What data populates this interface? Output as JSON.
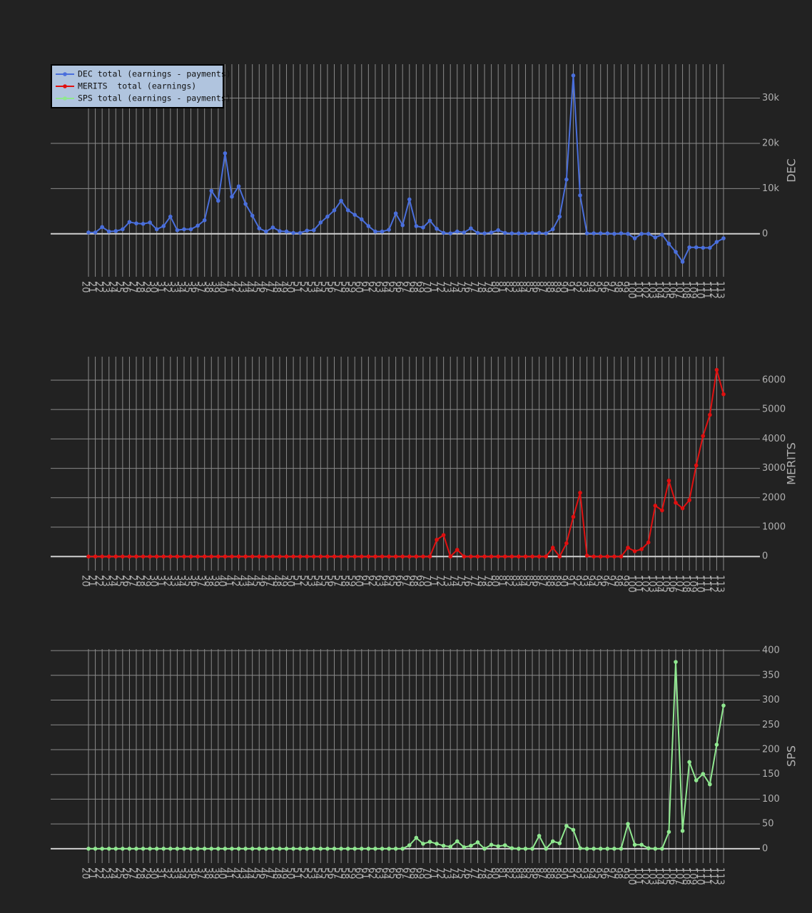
{
  "chart_data": [
    {
      "type": "line",
      "ylabel": "DEC",
      "legend": "upper left",
      "categories": [
        20,
        21,
        22,
        23,
        24,
        25,
        26,
        27,
        28,
        29,
        30,
        31,
        32,
        33,
        34,
        35,
        36,
        37,
        38,
        39,
        40,
        41,
        42,
        43,
        44,
        45,
        46,
        47,
        48,
        49,
        50,
        51,
        52,
        53,
        54,
        55,
        56,
        57,
        58,
        59,
        60,
        61,
        62,
        63,
        64,
        65,
        66,
        67,
        68,
        69,
        70,
        71,
        72,
        73,
        74,
        75,
        76,
        77,
        78,
        79,
        80,
        81,
        82,
        83,
        84,
        85,
        86,
        87,
        88,
        89,
        90,
        91,
        92,
        93,
        94,
        95,
        96,
        97,
        98,
        99,
        100,
        101,
        102,
        103,
        104,
        105,
        106,
        107,
        108,
        109,
        110,
        111,
        112,
        113
      ],
      "series": [
        {
          "name": "DEC total (earnings - payments)",
          "color": "#4a6fdc",
          "values": [
            300,
            300,
            1500,
            500,
            600,
            1000,
            2600,
            2300,
            2200,
            2500,
            1000,
            1700,
            3800,
            800,
            1000,
            1000,
            1800,
            3000,
            9500,
            7300,
            17800,
            8200,
            10500,
            6600,
            4000,
            1200,
            500,
            1400,
            600,
            500,
            200,
            200,
            700,
            800,
            2500,
            3800,
            5200,
            7300,
            5200,
            4200,
            3200,
            1700,
            500,
            500,
            900,
            4500,
            1900,
            7600,
            1700,
            1400,
            2900,
            1100,
            200,
            100,
            500,
            300,
            1200,
            200,
            100,
            300,
            800,
            200,
            100,
            100,
            100,
            200,
            200,
            100,
            1000,
            3800,
            12000,
            35000,
            8500,
            100,
            100,
            100,
            100,
            0,
            100,
            0,
            -1000,
            0,
            0,
            -800,
            -200,
            -2200,
            -4000,
            -6200,
            -3000,
            -3000,
            -3100,
            -3100,
            -1800,
            -1000
          ]
        }
      ],
      "ylim": [
        -9500,
        37500
      ],
      "yticks": [
        0,
        {
          "value": 10000,
          "label": "10k"
        },
        {
          "value": 20000,
          "label": "20k"
        },
        {
          "value": 30000,
          "label": "30k"
        }
      ],
      "grid": true
    },
    {
      "type": "line",
      "ylabel": "MERITS",
      "categories": [
        20,
        21,
        22,
        23,
        24,
        25,
        26,
        27,
        28,
        29,
        30,
        31,
        32,
        33,
        34,
        35,
        36,
        37,
        38,
        39,
        40,
        41,
        42,
        43,
        44,
        45,
        46,
        47,
        48,
        49,
        50,
        51,
        52,
        53,
        54,
        55,
        56,
        57,
        58,
        59,
        60,
        61,
        62,
        63,
        64,
        65,
        66,
        67,
        68,
        69,
        70,
        71,
        72,
        73,
        74,
        75,
        76,
        77,
        78,
        79,
        80,
        81,
        82,
        83,
        84,
        85,
        86,
        87,
        88,
        89,
        90,
        91,
        92,
        93,
        94,
        95,
        96,
        97,
        98,
        99,
        100,
        101,
        102,
        103,
        104,
        105,
        106,
        107,
        108,
        109,
        110,
        111,
        112,
        113
      ],
      "series": [
        {
          "name": "MERITS  total (earnings)",
          "color": "#e01010",
          "values": [
            0,
            0,
            0,
            0,
            0,
            0,
            0,
            0,
            0,
            0,
            0,
            0,
            0,
            0,
            0,
            0,
            0,
            0,
            0,
            0,
            0,
            0,
            0,
            0,
            0,
            0,
            0,
            0,
            0,
            0,
            0,
            0,
            0,
            0,
            0,
            0,
            0,
            0,
            0,
            0,
            0,
            0,
            0,
            0,
            0,
            0,
            0,
            0,
            0,
            0,
            0,
            570,
            730,
            0,
            230,
            0,
            0,
            0,
            0,
            0,
            0,
            0,
            0,
            0,
            0,
            0,
            0,
            0,
            300,
            0,
            450,
            1350,
            2170,
            30,
            0,
            0,
            0,
            0,
            0,
            300,
            180,
            250,
            480,
            1730,
            1570,
            2580,
            1830,
            1640,
            1920,
            3100,
            4100,
            4820,
            6350,
            5520
          ]
        }
      ],
      "ylim": [
        -480,
        6800
      ],
      "yticks": [
        0,
        1000,
        2000,
        3000,
        4000,
        5000,
        6000
      ],
      "grid": true
    },
    {
      "type": "line",
      "ylabel": "SPS",
      "categories": [
        20,
        21,
        22,
        23,
        24,
        25,
        26,
        27,
        28,
        29,
        30,
        31,
        32,
        33,
        34,
        35,
        36,
        37,
        38,
        39,
        40,
        41,
        42,
        43,
        44,
        45,
        46,
        47,
        48,
        49,
        50,
        51,
        52,
        53,
        54,
        55,
        56,
        57,
        58,
        59,
        60,
        61,
        62,
        63,
        64,
        65,
        66,
        67,
        68,
        69,
        70,
        71,
        72,
        73,
        74,
        75,
        76,
        77,
        78,
        79,
        80,
        81,
        82,
        83,
        84,
        85,
        86,
        87,
        88,
        89,
        90,
        91,
        92,
        93,
        94,
        95,
        96,
        97,
        98,
        99,
        100,
        101,
        102,
        103,
        104,
        105,
        106,
        107,
        108,
        109,
        110,
        111,
        112,
        113
      ],
      "series": [
        {
          "name": "SPS total (earnings - payments)",
          "color": "#90e890",
          "values": [
            0,
            0,
            0,
            0,
            0,
            0,
            0,
            0,
            0,
            0,
            0,
            0,
            0,
            0,
            0,
            0,
            0,
            0,
            0,
            0,
            0,
            0,
            0,
            0,
            0,
            0,
            0,
            0,
            0,
            0,
            0,
            0,
            0,
            0,
            0,
            0,
            0,
            0,
            0,
            0,
            0,
            0,
            0,
            0,
            0,
            0,
            0,
            7,
            22,
            10,
            14,
            10,
            6,
            4,
            15,
            3,
            6,
            13,
            0,
            8,
            5,
            7,
            1,
            0,
            0,
            0,
            26,
            0,
            15,
            11,
            46,
            38,
            1,
            0,
            0,
            0,
            0,
            0,
            0,
            50,
            8,
            8,
            1,
            0,
            0,
            34,
            377,
            36,
            175,
            138,
            151,
            130,
            210,
            289
          ]
        }
      ],
      "ylim": [
        -29,
        403
      ],
      "yticks": [
        0,
        50,
        100,
        150,
        200,
        250,
        300,
        350,
        400
      ],
      "grid": true
    }
  ]
}
